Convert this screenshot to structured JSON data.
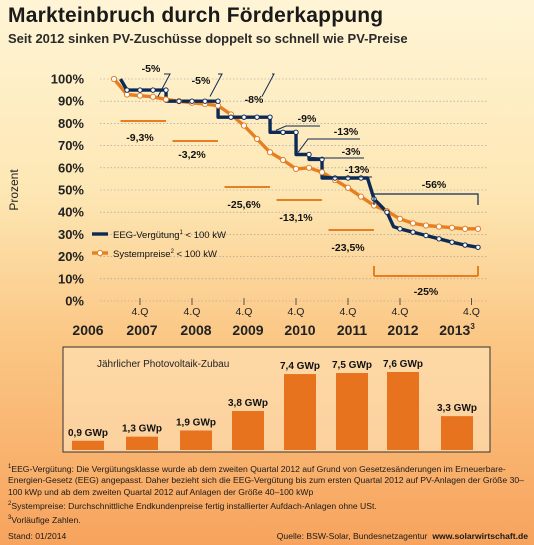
{
  "title": "Markteinbruch durch Förderkappung",
  "subtitle": "Seit 2012 sinken PV-Zuschüsse doppelt so schnell wie PV-Preise",
  "colors": {
    "eeg": "#0d2a55",
    "system": "#e67e22",
    "bar": "#e8731f",
    "grid": "#999999"
  },
  "chart_data": [
    {
      "type": "line",
      "ylabel": "Prozent",
      "ylim": [
        0,
        100
      ],
      "yticks": [
        "0%",
        "10%",
        "20%",
        "30%",
        "40%",
        "50%",
        "60%",
        "70%",
        "80%",
        "90%",
        "100%"
      ],
      "quarter_labels": [
        "4.Q",
        "4.Q",
        "4.Q",
        "4.Q",
        "4.Q",
        "4.Q",
        "4.Q"
      ],
      "year_labels": [
        "2006",
        "2007",
        "2008",
        "2009",
        "2010",
        "2011",
        "2012",
        "2013"
      ],
      "year_superscript": "3",
      "series": [
        {
          "name": "EEG-Vergütung",
          "name_sup": "1",
          "name_suffix": " < 100 kW",
          "points": [
            [
              0.5,
              100
            ],
            [
              1,
              95
            ],
            [
              2,
              95
            ],
            [
              3,
              95
            ],
            [
              4,
              95
            ],
            [
              4.01,
              90
            ],
            [
              5,
              90
            ],
            [
              6,
              90
            ],
            [
              7,
              90
            ],
            [
              8,
              90
            ],
            [
              8.01,
              82.8
            ],
            [
              9,
              82.8
            ],
            [
              10,
              82.8
            ],
            [
              11,
              82.8
            ],
            [
              12,
              82.8
            ],
            [
              12.01,
              76
            ],
            [
              13,
              76
            ],
            [
              14,
              76
            ],
            [
              14.01,
              66
            ],
            [
              15,
              66
            ],
            [
              15.01,
              63.8
            ],
            [
              16,
              63.8
            ],
            [
              16.01,
              55.4
            ],
            [
              17,
              55.4
            ],
            [
              18,
              55.4
            ],
            [
              19,
              55.4
            ],
            [
              19.5,
              55.4
            ],
            [
              20,
              46
            ],
            [
              21,
              40
            ],
            [
              21.5,
              33.5
            ],
            [
              22,
              32.5
            ],
            [
              23,
              31
            ],
            [
              24,
              29.5
            ],
            [
              25,
              28
            ],
            [
              26,
              26.5
            ],
            [
              27,
              25.2
            ],
            [
              28,
              24.2
            ]
          ]
        },
        {
          "name": "Systempreise",
          "name_sup": "2",
          "name_suffix": " < 100 kW",
          "points": [
            [
              0,
              100
            ],
            [
              1,
              93
            ],
            [
              2,
              92.5
            ],
            [
              3,
              92
            ],
            [
              4,
              90.8
            ],
            [
              5,
              90
            ],
            [
              6,
              89.3
            ],
            [
              7,
              88.7
            ],
            [
              8,
              88
            ],
            [
              9,
              84
            ],
            [
              10,
              79
            ],
            [
              11,
              73
            ],
            [
              12,
              67
            ],
            [
              13,
              63.5
            ],
            [
              14,
              59.5
            ],
            [
              15,
              60
            ],
            [
              16,
              58
            ],
            [
              17,
              54.5
            ],
            [
              18,
              51
            ],
            [
              19,
              47
            ],
            [
              20,
              43
            ],
            [
              21,
              40.5
            ],
            [
              22,
              37
            ],
            [
              23,
              35
            ],
            [
              24,
              34
            ],
            [
              25,
              33.5
            ],
            [
              26,
              33
            ],
            [
              27,
              32.5
            ],
            [
              28,
              32.5
            ]
          ]
        }
      ],
      "annotations": [
        {
          "text": "-5%",
          "series": "EEG-Vergütung"
        },
        {
          "text": "-5%",
          "series": "EEG-Vergütung"
        },
        {
          "text": "-8%",
          "series": "EEG-Vergütung"
        },
        {
          "text": "-9%",
          "series": "EEG-Vergütung"
        },
        {
          "text": "-13%",
          "series": "EEG-Vergütung"
        },
        {
          "text": "-3%",
          "series": "EEG-Vergütung"
        },
        {
          "text": "-13%",
          "series": "EEG-Vergütung"
        },
        {
          "text": "-56%",
          "series": "EEG-Vergütung"
        },
        {
          "text": "-9,3%",
          "series": "Systempreise"
        },
        {
          "text": "-3,2%",
          "series": "Systempreise"
        },
        {
          "text": "-25,6%",
          "series": "Systempreise"
        },
        {
          "text": "-13,1%",
          "series": "Systempreise"
        },
        {
          "text": "-23,5%",
          "series": "Systempreise"
        },
        {
          "text": "-25%",
          "series": "Systempreise"
        }
      ]
    },
    {
      "type": "bar",
      "title": "Jährlicher Photovoltaik-Zubau",
      "unit": "GWp",
      "categories": [
        "2006",
        "2007",
        "2008",
        "2009",
        "2010",
        "2011",
        "2012",
        "2013"
      ],
      "values": [
        0.9,
        1.3,
        1.9,
        3.8,
        7.4,
        7.5,
        7.6,
        3.3
      ],
      "labels": [
        "0,9 GWp",
        "1,3 GWp",
        "1,9 GWp",
        "3,8 GWp",
        "7,4 GWp",
        "7,5 GWp",
        "7,6 GWp",
        "3,3 GWp"
      ]
    }
  ],
  "footnotes": [
    {
      "sup": "1",
      "text": "EEG-Vergütung: Die Vergütungsklasse wurde ab dem zweiten Quartal 2012 auf Grund von Gesetzesänderungen im Erneuerbare-Energien-Gesetz (EEG) angepasst. Daher bezieht sich die EEG-Vergütung bis zum ersten Quartal 2012 auf PV-Anlagen der Größe 30–100 kWp und ab dem zweiten Quartal 2012 auf Anlagen der Größe 40–100 kWp"
    },
    {
      "sup": "2",
      "text": "Systempreise: Durchschnittliche Endkundenpreise fertig installierter Aufdach-Anlagen ohne USt."
    },
    {
      "sup": "3",
      "text": "Vorläufige Zahlen."
    }
  ],
  "stand": "Stand: 01/2014",
  "source_prefix": "Quelle: BSW-Solar, Bundesnetzagentur",
  "source_site": "www.solarwirtschaft.de"
}
